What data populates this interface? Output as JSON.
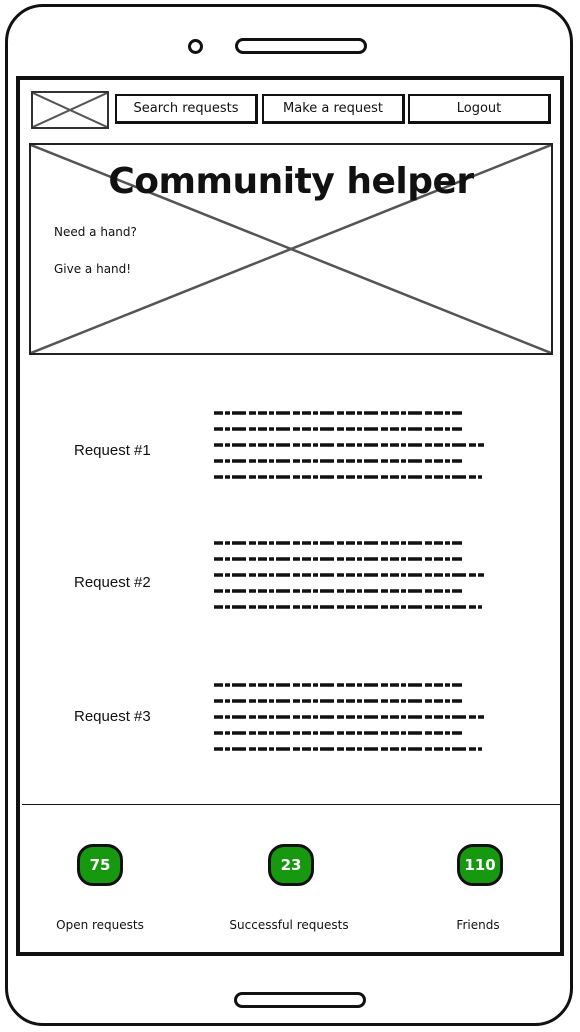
{
  "header": {
    "nav": {
      "search_label": "Search requests",
      "make_label": "Make a request",
      "logout_label": "Logout"
    }
  },
  "hero": {
    "title": "Community helper",
    "line1": "Need a hand?",
    "line2": "Give a hand!"
  },
  "requests": [
    {
      "label": "Request #1"
    },
    {
      "label": "Request #2"
    },
    {
      "label": "Request #3"
    }
  ],
  "stats": [
    {
      "value": "75",
      "label": "Open requests"
    },
    {
      "value": "23",
      "label": "Successful requests"
    },
    {
      "value": "110",
      "label": "Friends"
    }
  ],
  "colors": {
    "badge_green": "#17990f",
    "ink": "#111111"
  }
}
